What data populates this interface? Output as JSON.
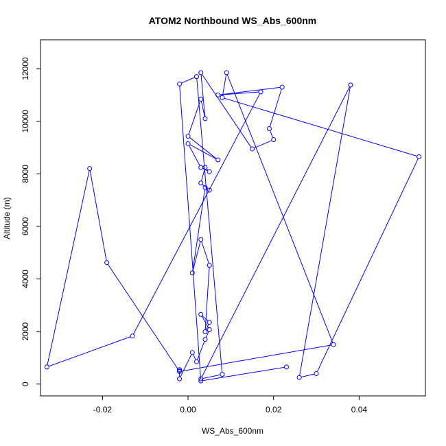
{
  "chart_data": {
    "type": "line",
    "title": "ATOM2 Northbound WS_Abs_600nm",
    "xlabel": "WS_Abs_600nm",
    "ylabel": "Altitude (m)",
    "xlim": [
      -0.0345,
      0.0555
    ],
    "ylim": [
      -450,
      13100
    ],
    "xticks": [
      -0.02,
      0.0,
      0.02,
      0.04
    ],
    "xtick_labels": [
      "-0.02",
      "0.00",
      "0.02",
      "0.04"
    ],
    "yticks": [
      0,
      2000,
      4000,
      6000,
      8000,
      10000,
      12000
    ],
    "ytick_labels": [
      "0",
      "2000",
      "4000",
      "6000",
      "8000",
      "10000",
      "12000"
    ],
    "grid": false,
    "series_color": "#0000ff",
    "x": [
      -0.002,
      -0.002,
      -0.002,
      0.001,
      0.002,
      0.004,
      0.005,
      0.003,
      0.005,
      0.004,
      0.005,
      0.003,
      0.001,
      0.004,
      0.005,
      0.003,
      0.004,
      0.005,
      0.003,
      0.0,
      0.007,
      0.0,
      0.003,
      0.004,
      0.003,
      0.015,
      0.02,
      0.019,
      0.022,
      0.007,
      0.017,
      -0.013,
      -0.033,
      -0.023,
      -0.019,
      -0.002,
      0.034,
      0.009,
      0.008,
      0.054,
      0.03,
      0.026,
      0.038,
      0.003,
      0.008,
      0.002,
      -0.002,
      0.003,
      0.023
    ],
    "y": [
      500,
      550,
      200,
      1200,
      850,
      1700,
      2070,
      2650,
      2350,
      1990,
      4520,
      5500,
      4230,
      7480,
      7380,
      7650,
      8250,
      8080,
      8240,
      9150,
      8530,
      9430,
      10840,
      10100,
      11850,
      8950,
      9300,
      9720,
      11300,
      11000,
      11120,
      1830,
      650,
      8200,
      4620,
      480,
      1500,
      11850,
      10900,
      8650,
      400,
      250,
      11380,
      200,
      370,
      11700,
      11420,
      120,
      650
    ]
  }
}
